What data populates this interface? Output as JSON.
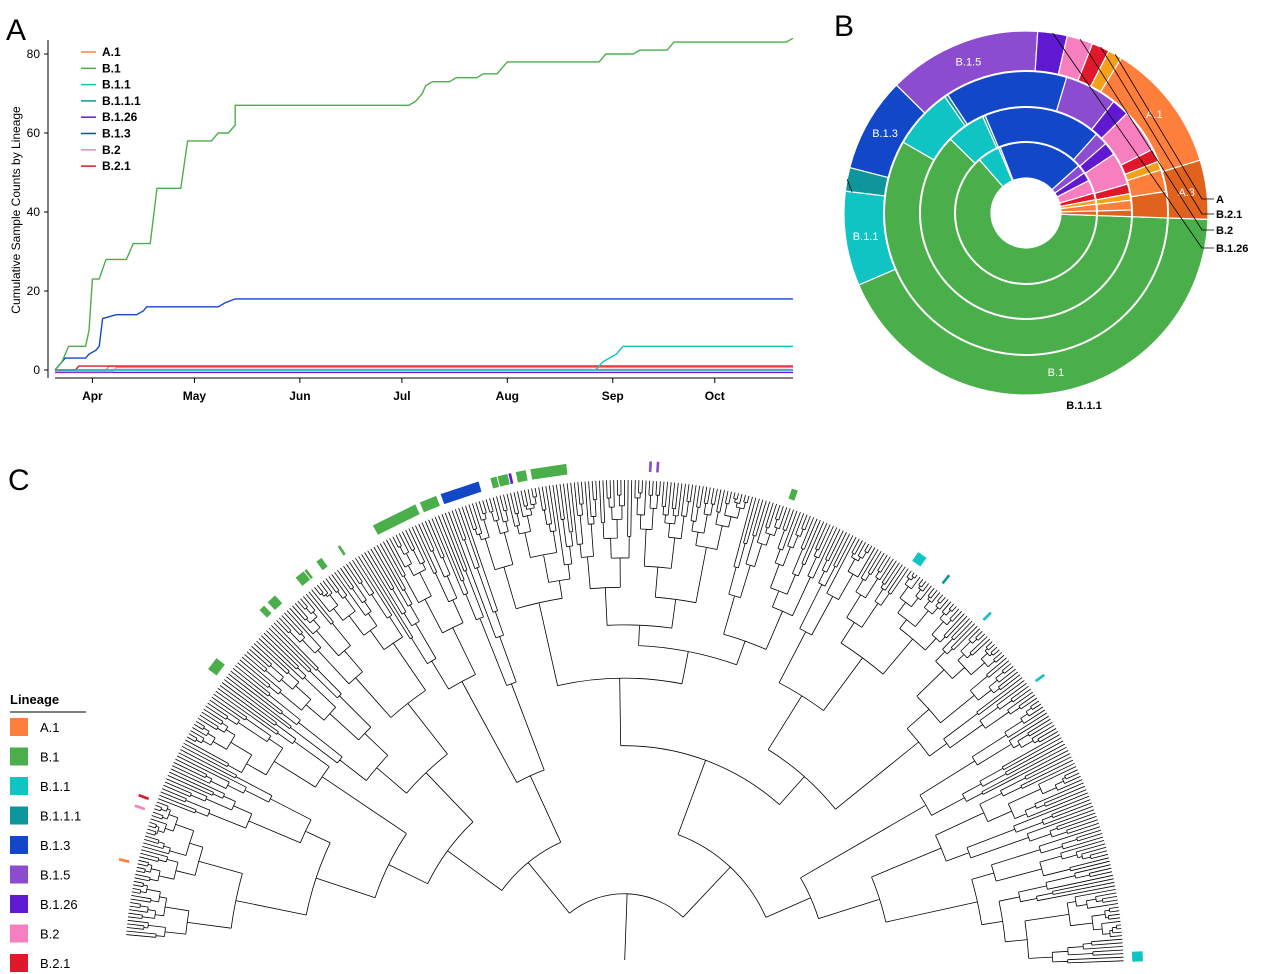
{
  "panels": {
    "a": "A",
    "b": "B",
    "c": "C"
  },
  "colors": {
    "A": "#f4a018",
    "A.1": "#fe7f3b",
    "A.3": "#e0621c",
    "B.1": "#4aaf4a",
    "B.1.1": "#10c4c4",
    "B.1.1.1": "#0e969c",
    "B.1.3": "#1248c8",
    "B.1.5": "#8c4ccf",
    "B.1.26": "#6018d0",
    "B.2": "#f77fc0",
    "B.2.1": "#e0182c"
  },
  "chart_data": [
    {
      "type": "line",
      "ylabel": "Cumulative Sample Counts by Lineage",
      "xlabel": "",
      "ylim": [
        0,
        84
      ],
      "yticks": [
        "0",
        "20",
        "40",
        "60",
        "80"
      ],
      "xticks": [
        "Apr",
        "May",
        "Jun",
        "Jul",
        "Aug",
        "Sep",
        "Oct"
      ],
      "x_domain_days": [
        -9,
        208
      ],
      "x_note": "x values are days since Apr 1",
      "legend_position": "top-left",
      "series": [
        {
          "name": "A.1",
          "color": "#fe7f3b",
          "points": [
            [
              -9,
              0
            ],
            [
              6,
              0
            ],
            [
              7,
              1
            ],
            [
              208,
              1
            ]
          ]
        },
        {
          "name": "B.1",
          "color": "#4aaf4a",
          "points": [
            [
              -9,
              0
            ],
            [
              -7,
              2
            ],
            [
              -5,
              6
            ],
            [
              0,
              6
            ],
            [
              1,
              10
            ],
            [
              2,
              23
            ],
            [
              4,
              23
            ],
            [
              6,
              28
            ],
            [
              12,
              28
            ],
            [
              14,
              32
            ],
            [
              19,
              32
            ],
            [
              21,
              46
            ],
            [
              28,
              46
            ],
            [
              30,
              58
            ],
            [
              37,
              58
            ],
            [
              38,
              59
            ],
            [
              39,
              60
            ],
            [
              42,
              60
            ],
            [
              44,
              62
            ],
            [
              44,
              67
            ],
            [
              95,
              67
            ],
            [
              97,
              68
            ],
            [
              98,
              69
            ],
            [
              99,
              70
            ],
            [
              100,
              72
            ],
            [
              102,
              73
            ],
            [
              107,
              73
            ],
            [
              109,
              74
            ],
            [
              115,
              74
            ],
            [
              117,
              75
            ],
            [
              121,
              75
            ],
            [
              122,
              76
            ],
            [
              124,
              78
            ],
            [
              151,
              78
            ],
            [
              153,
              80
            ],
            [
              161,
              80
            ],
            [
              163,
              81
            ],
            [
              171,
              81
            ],
            [
              173,
              83
            ],
            [
              206,
              83
            ],
            [
              208,
              84
            ]
          ]
        },
        {
          "name": "B.1.1",
          "color": "#10c4c4",
          "points": [
            [
              -9,
              0
            ],
            [
              150,
              0
            ],
            [
              152,
              2
            ],
            [
              154,
              3
            ],
            [
              156,
              4
            ],
            [
              158,
              6
            ],
            [
              208,
              6
            ]
          ]
        },
        {
          "name": "B.1.1.1",
          "color": "#0e969c",
          "points": [
            [
              -9,
              0
            ],
            [
              208,
              0
            ]
          ]
        },
        {
          "name": "B.1.26",
          "color": "#6018d0",
          "points": [
            [
              -9,
              -0.6
            ],
            [
              208,
              -0.6
            ]
          ]
        },
        {
          "name": "B.1.3",
          "color": "#1248c8",
          "points": [
            [
              -9,
              0
            ],
            [
              -7,
              2
            ],
            [
              -6,
              3
            ],
            [
              0,
              3
            ],
            [
              1,
              4
            ],
            [
              3,
              5
            ],
            [
              4,
              6
            ],
            [
              5,
              13
            ],
            [
              9,
              14
            ],
            [
              15,
              14
            ],
            [
              17,
              15
            ],
            [
              18,
              16
            ],
            [
              39,
              16
            ],
            [
              41,
              17
            ],
            [
              44,
              18
            ],
            [
              208,
              18
            ]
          ]
        },
        {
          "name": "B.2",
          "color": "#f77fc0",
          "points": [
            [
              -9,
              -0.4
            ],
            [
              8,
              -0.4
            ],
            [
              9,
              0.6
            ],
            [
              208,
              0.6
            ]
          ]
        },
        {
          "name": "B.2.1",
          "color": "#e0182c",
          "points": [
            [
              -9,
              0
            ],
            [
              -3,
              0
            ],
            [
              -2,
              1
            ],
            [
              208,
              1
            ]
          ]
        }
      ]
    },
    {
      "type": "pie",
      "subtype": "sunburst",
      "rings": [
        [
          {
            "lineage": "B.1",
            "value": 62
          },
          {
            "lineage": "B.1.1",
            "value": 5
          },
          {
            "lineage": "B.1.1.1",
            "value": 0.4
          },
          {
            "lineage": "B.1.3",
            "value": 19
          },
          {
            "lineage": "B.1.5",
            "value": 2
          },
          {
            "lineage": "B.1.26",
            "value": 2
          },
          {
            "lineage": "B.2",
            "value": 3
          },
          {
            "lineage": "B.2.1",
            "value": 1.5
          },
          {
            "lineage": "A",
            "value": 1
          },
          {
            "lineage": "A.1",
            "value": 1.5
          },
          {
            "lineage": "A.3",
            "value": 1
          }
        ],
        [
          {
            "lineage": "B.1",
            "value": 62
          },
          {
            "lineage": "B.1.1",
            "value": 6
          },
          {
            "lineage": "B.1.1.1",
            "value": 0.4
          },
          {
            "lineage": "B.1.3",
            "value": 18
          },
          {
            "lineage": "B.1.5",
            "value": 2
          },
          {
            "lineage": "B.1.26",
            "value": 2
          },
          {
            "lineage": "B.2",
            "value": 5
          },
          {
            "lineage": "B.2.1",
            "value": 1.5
          },
          {
            "lineage": "A",
            "value": 1
          },
          {
            "lineage": "A.1",
            "value": 1.5
          },
          {
            "lineage": "A.3",
            "value": 1
          }
        ],
        [
          {
            "lineage": "B.1",
            "value": 58
          },
          {
            "lineage": "B.1.1",
            "value": 7
          },
          {
            "lineage": "B.1.1.1",
            "value": 0.4
          },
          {
            "lineage": "B.1.3",
            "value": 14
          },
          {
            "lineage": "B.1.5",
            "value": 6
          },
          {
            "lineage": "B.1.26",
            "value": 2
          },
          {
            "lineage": "B.2",
            "value": 5
          },
          {
            "lineage": "B.2.1",
            "value": 1.5
          },
          {
            "lineage": "A",
            "value": 1
          },
          {
            "lineage": "A.1",
            "value": 2.5
          },
          {
            "lineage": "A.3",
            "value": 3
          }
        ],
        [
          {
            "lineage": "B.1",
            "value": 41
          },
          {
            "lineage": "B.1.1",
            "value": 8
          },
          {
            "lineage": "B.1.1.1",
            "value": 2
          },
          {
            "lineage": "B.1.3",
            "value": 8
          },
          {
            "lineage": "B.1.5",
            "value": 13
          },
          {
            "lineage": "B.1.26",
            "value": 2.5
          },
          {
            "lineage": "B.2",
            "value": 2.2
          },
          {
            "lineage": "B.2.1",
            "value": 1.5
          },
          {
            "lineage": "A",
            "value": 1.2
          },
          {
            "lineage": "A.1",
            "value": 11
          },
          {
            "lineage": "A.3",
            "value": 5
          }
        ]
      ],
      "inside_labels": [
        {
          "text": "A.3",
          "ring": 3,
          "lineage": "A.3"
        },
        {
          "text": "A.1",
          "ring": 3,
          "lineage": "A.1"
        },
        {
          "text": "B.1.5",
          "ring": 3,
          "lineage": "B.1.5"
        },
        {
          "text": "B.1.3",
          "ring": 3,
          "lineage": "B.1.3"
        },
        {
          "text": "B.1.1",
          "ring": 3,
          "lineage": "B.1.1"
        },
        {
          "text": "B.1",
          "ring": 3,
          "lineage": "B.1"
        }
      ],
      "outside_labels": [
        "A",
        "B.2.1",
        "B.2",
        "B.1.26",
        "B.1.1.1"
      ]
    },
    {
      "type": "tree",
      "subtype": "circular phylogeny",
      "leaf_count": 420,
      "tip_marks": [
        {
          "lineage": "B.1",
          "from": 77,
          "to": 80
        },
        {
          "lineage": "B.1",
          "from": 98,
          "to": 99
        },
        {
          "lineage": "B.1",
          "from": 101,
          "to": 103
        },
        {
          "lineage": "B.1",
          "from": 111,
          "to": 113
        },
        {
          "lineage": "B.1",
          "from": 114,
          "to": 114
        },
        {
          "lineage": "B.1",
          "from": 118,
          "to": 119
        },
        {
          "lineage": "B.1",
          "from": 125,
          "to": 125
        },
        {
          "lineage": "B.1",
          "from": 136,
          "to": 148
        },
        {
          "lineage": "B.1",
          "from": 150,
          "to": 154
        },
        {
          "lineage": "B.1.3",
          "from": 156,
          "to": 166
        },
        {
          "lineage": "B.1",
          "from": 170,
          "to": 171
        },
        {
          "lineage": "B.1",
          "from": 172,
          "to": 174
        },
        {
          "lineage": "B.1.26",
          "from": 175,
          "to": 175
        },
        {
          "lineage": "B.1",
          "from": 177,
          "to": 179
        },
        {
          "lineage": "B.1",
          "from": 181,
          "to": 190
        },
        {
          "lineage": "B.1.5",
          "from": 213,
          "to": 213
        },
        {
          "lineage": "B.1.5",
          "from": 215,
          "to": 215
        },
        {
          "lineage": "B.1",
          "from": 252,
          "to": 253
        },
        {
          "lineage": "B.1.1",
          "from": 290,
          "to": 292
        },
        {
          "lineage": "B.1.1.1",
          "from": 300,
          "to": 300
        },
        {
          "lineage": "B.1.1",
          "from": 315,
          "to": 315
        },
        {
          "lineage": "B.1.1",
          "from": 337,
          "to": 337
        },
        {
          "lineage": "B.1.1",
          "from": 417,
          "to": 419
        },
        {
          "lineage": "B.2.1",
          "from": 38,
          "to": 38
        },
        {
          "lineage": "B.2",
          "from": 35,
          "to": 35
        },
        {
          "lineage": "A.1",
          "from": 20,
          "to": 20
        }
      ]
    }
  ],
  "legend_c": {
    "title": "Lineage",
    "items": [
      {
        "label": "A.1",
        "lineage": "A.1"
      },
      {
        "label": "B.1",
        "lineage": "B.1"
      },
      {
        "label": "B.1.1",
        "lineage": "B.1.1"
      },
      {
        "label": "B.1.1.1",
        "lineage": "B.1.1.1"
      },
      {
        "label": "B.1.3",
        "lineage": "B.1.3"
      },
      {
        "label": "B.1.5",
        "lineage": "B.1.5"
      },
      {
        "label": "B.1.26",
        "lineage": "B.1.26"
      },
      {
        "label": "B.2",
        "lineage": "B.2"
      },
      {
        "label": "B.2.1",
        "lineage": "B.2.1"
      }
    ]
  }
}
